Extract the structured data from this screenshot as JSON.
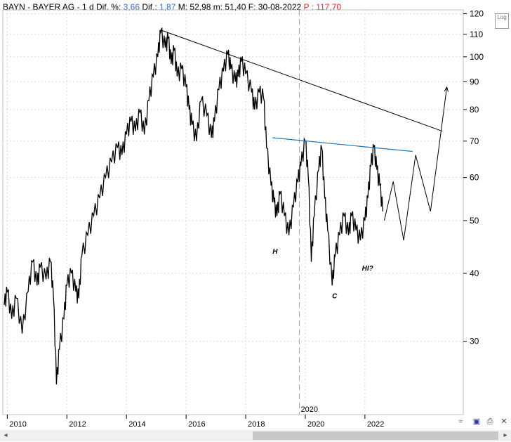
{
  "header": {
    "symbol": "BAYN",
    "sep1": " - ",
    "name": "BAYER AG",
    "sep2": " - ",
    "period": "1 d",
    "dif_pct_label": " Dif. %: ",
    "dif_pct_value": "3,66",
    "dif_label": " Dif.: ",
    "dif_value": "1,87",
    "max_label": " M: 52,98",
    "min_label": " m: 51,40",
    "date_label": " F: 30-08-2022",
    "price_label": "  P : 117,70"
  },
  "toolbar": {
    "log_label": "Log"
  },
  "colors": {
    "price_line": "#000000",
    "upper_trendline": "#000000",
    "neckline": "#1f77b4",
    "cursor_line": "#aaaaaa",
    "grid": "#d9d9d9"
  },
  "chart_data": {
    "type": "line",
    "scale": "log",
    "ylim": [
      22,
      122
    ],
    "xlim": [
      2009.85,
      2025.3
    ],
    "yticks": [
      30,
      40,
      50,
      60,
      70,
      80,
      90,
      100,
      110,
      120
    ],
    "xticks": [
      2010,
      2012,
      2014,
      2016,
      2018,
      2020,
      2022
    ],
    "cursor_x_label": "2020",
    "cursor_x": 2019.8,
    "series": [
      {
        "points": [
          [
            2009.9,
            35
          ],
          [
            2010.0,
            37
          ],
          [
            2010.15,
            33
          ],
          [
            2010.3,
            36
          ],
          [
            2010.5,
            31
          ],
          [
            2010.7,
            37
          ],
          [
            2010.85,
            42
          ],
          [
            2011.0,
            38
          ],
          [
            2011.1,
            41
          ],
          [
            2011.3,
            39
          ],
          [
            2011.45,
            42
          ],
          [
            2011.55,
            36
          ],
          [
            2011.65,
            25
          ],
          [
            2011.75,
            29
          ],
          [
            2011.9,
            33
          ],
          [
            2012.0,
            38
          ],
          [
            2012.15,
            40
          ],
          [
            2012.3,
            37
          ],
          [
            2012.4,
            36
          ],
          [
            2012.5,
            43
          ],
          [
            2012.7,
            47
          ],
          [
            2012.9,
            51
          ],
          [
            2013.1,
            55
          ],
          [
            2013.3,
            60
          ],
          [
            2013.5,
            64
          ],
          [
            2013.7,
            68
          ],
          [
            2013.85,
            66
          ],
          [
            2014.0,
            72
          ],
          [
            2014.15,
            76
          ],
          [
            2014.3,
            73
          ],
          [
            2014.45,
            79
          ],
          [
            2014.6,
            72
          ],
          [
            2014.75,
            83
          ],
          [
            2014.9,
            92
          ],
          [
            2015.05,
            100
          ],
          [
            2015.15,
            111
          ],
          [
            2015.3,
            104
          ],
          [
            2015.4,
            108
          ],
          [
            2015.5,
            97
          ],
          [
            2015.6,
            103
          ],
          [
            2015.7,
            92
          ],
          [
            2015.85,
            95
          ],
          [
            2016.0,
            88
          ],
          [
            2016.1,
            80
          ],
          [
            2016.2,
            75
          ],
          [
            2016.35,
            70
          ],
          [
            2016.5,
            83
          ],
          [
            2016.7,
            78
          ],
          [
            2016.85,
            71
          ],
          [
            2016.95,
            76
          ],
          [
            2017.1,
            87
          ],
          [
            2017.25,
            94
          ],
          [
            2017.4,
            101
          ],
          [
            2017.5,
            95
          ],
          [
            2017.65,
            90
          ],
          [
            2017.75,
            92
          ],
          [
            2017.85,
            98
          ],
          [
            2018.0,
            93
          ],
          [
            2018.2,
            86
          ],
          [
            2018.3,
            80
          ],
          [
            2018.45,
            86
          ],
          [
            2018.6,
            84
          ],
          [
            2018.7,
            68
          ],
          [
            2018.85,
            58
          ],
          [
            2018.95,
            54
          ],
          [
            2019.05,
            51
          ],
          [
            2019.15,
            56
          ],
          [
            2019.3,
            51
          ],
          [
            2019.45,
            47
          ],
          [
            2019.6,
            53
          ],
          [
            2019.75,
            59
          ],
          [
            2019.85,
            63
          ],
          [
            2020.0,
            70
          ],
          [
            2020.1,
            60
          ],
          [
            2020.2,
            42
          ],
          [
            2020.3,
            51
          ],
          [
            2020.45,
            62
          ],
          [
            2020.55,
            68
          ],
          [
            2020.65,
            55
          ],
          [
            2020.75,
            48
          ],
          [
            2020.9,
            38
          ],
          [
            2021.0,
            43
          ],
          [
            2021.15,
            47
          ],
          [
            2021.3,
            51
          ],
          [
            2021.45,
            47
          ],
          [
            2021.55,
            51
          ],
          [
            2021.7,
            48
          ],
          [
            2021.85,
            46
          ],
          [
            2022.0,
            50
          ],
          [
            2022.1,
            55
          ],
          [
            2022.2,
            63
          ],
          [
            2022.3,
            68
          ],
          [
            2022.4,
            62
          ],
          [
            2022.5,
            58
          ],
          [
            2022.6,
            52
          ]
        ]
      }
    ],
    "projection": [
      [
        2022.65,
        50
      ],
      [
        2022.95,
        59
      ],
      [
        2023.3,
        46
      ],
      [
        2023.7,
        66
      ],
      [
        2024.2,
        52
      ],
      [
        2024.75,
        88
      ]
    ],
    "upper_trendline": [
      [
        2015.15,
        112
      ],
      [
        2024.6,
        73
      ]
    ],
    "neckline": [
      [
        2018.9,
        71
      ],
      [
        2023.6,
        67
      ]
    ],
    "annotations": [
      {
        "text": "H",
        "x": 2018.9,
        "y": 43.5
      },
      {
        "text": "C",
        "x": 2020.9,
        "y": 36
      },
      {
        "text": "HI?",
        "x": 2021.9,
        "y": 40.5
      }
    ]
  }
}
